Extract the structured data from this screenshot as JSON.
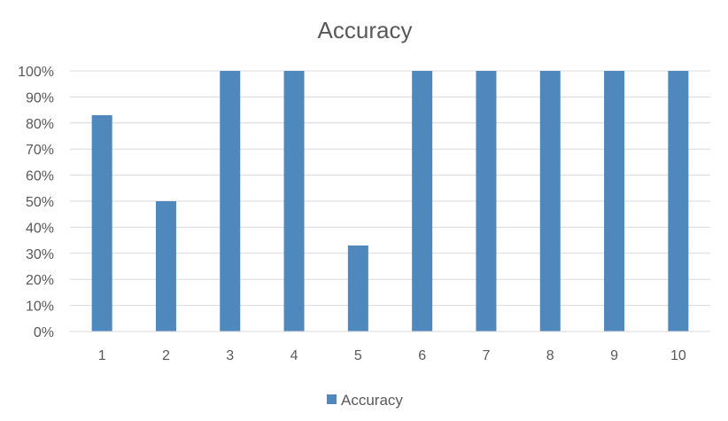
{
  "chart_data": {
    "type": "bar",
    "title": "Accuracy",
    "categories": [
      "1",
      "2",
      "3",
      "4",
      "5",
      "6",
      "7",
      "8",
      "9",
      "10"
    ],
    "series": [
      {
        "name": "Accuracy",
        "values": [
          83,
          50,
          100,
          100,
          33,
          100,
          100,
          100,
          100,
          100
        ]
      }
    ],
    "y_ticks": [
      "0%",
      "10%",
      "20%",
      "30%",
      "40%",
      "50%",
      "60%",
      "70%",
      "80%",
      "90%",
      "100%"
    ],
    "ylim": [
      0,
      100
    ],
    "grid": true,
    "legend": "bottom",
    "bar_color": "#4f88bc"
  }
}
